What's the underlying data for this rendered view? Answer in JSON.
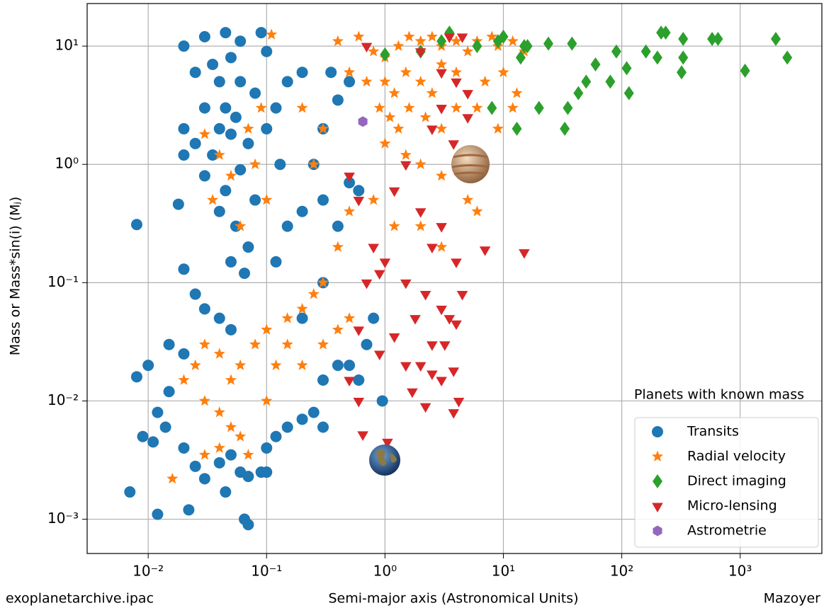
{
  "chart_data": {
    "type": "scatter",
    "xlabel": "Semi-major axis (Astronomical Units)",
    "ylabel": "Mass or Mass*sin(i) (Mⱼ)",
    "annotations": [
      "Planets with known mass",
      "exoplanetarchive.ipac",
      "Mazoyer"
    ],
    "xscale": "log",
    "yscale": "log",
    "grid": true,
    "legend_loc": "lower right",
    "xlim": [
      0.00305,
      4900
    ],
    "ylim": [
      0.000513,
      22.9
    ],
    "xticks": [
      {
        "value": 0.01,
        "label": "10⁻²"
      },
      {
        "value": 0.1,
        "label": "10⁻¹"
      },
      {
        "value": 1,
        "label": "10⁰"
      },
      {
        "value": 10,
        "label": "10¹"
      },
      {
        "value": 100,
        "label": "10²"
      },
      {
        "value": 1000,
        "label": "10³"
      }
    ],
    "yticks": [
      {
        "value": 0.001,
        "label": "10⁻³"
      },
      {
        "value": 0.01,
        "label": "10⁻²"
      },
      {
        "value": 0.1,
        "label": "10⁻¹"
      },
      {
        "value": 1,
        "label": "10⁰"
      },
      {
        "value": 10,
        "label": "10¹"
      }
    ],
    "series": [
      {
        "name": "Transits",
        "color": "#1f77b4",
        "marker": "circle",
        "x": [
          0.02,
          0.03,
          0.045,
          0.06,
          0.09,
          0.1,
          0.05,
          0.035,
          0.025,
          0.04,
          0.06,
          0.08,
          0.03,
          0.045,
          0.055,
          0.02,
          0.025,
          0.035,
          0.04,
          0.05,
          0.07,
          0.1,
          0.13,
          0.02,
          0.03,
          0.045,
          0.06,
          0.08,
          0.04,
          0.055,
          0.07,
          0.05,
          0.065,
          0.02,
          0.008,
          0.018,
          0.025,
          0.03,
          0.04,
          0.05,
          0.015,
          0.02,
          0.01,
          0.008,
          0.015,
          0.012,
          0.009,
          0.011,
          0.014,
          0.02,
          0.025,
          0.03,
          0.04,
          0.05,
          0.06,
          0.07,
          0.09,
          0.1,
          0.007,
          0.012,
          0.022,
          0.045,
          0.065,
          0.07,
          0.1,
          0.12,
          0.15,
          0.2,
          0.3,
          0.25,
          0.3,
          0.4,
          0.5,
          0.6,
          0.7,
          0.95,
          0.8,
          0.3,
          0.2,
          0.12,
          0.15,
          0.2,
          0.3,
          0.4,
          0.5,
          0.6,
          0.25,
          0.3,
          0.4,
          0.5,
          0.35,
          0.2,
          0.15,
          0.12
        ],
        "values": [
          10,
          12,
          13,
          11,
          13,
          9,
          8,
          7,
          6,
          5,
          5,
          4,
          3,
          3,
          2.5,
          2,
          1.5,
          1.2,
          2,
          1.8,
          1.5,
          2,
          1,
          1.2,
          0.8,
          0.6,
          0.9,
          0.5,
          0.4,
          0.3,
          0.2,
          0.15,
          0.12,
          0.13,
          0.31,
          0.46,
          0.08,
          0.06,
          0.05,
          0.04,
          0.03,
          0.025,
          0.02,
          0.016,
          0.012,
          0.008,
          0.005,
          0.0045,
          0.006,
          0.004,
          0.0028,
          0.0022,
          0.003,
          0.0035,
          0.0025,
          0.0023,
          0.0025,
          0.0025,
          0.0017,
          0.0011,
          0.0012,
          0.0017,
          0.001,
          0.0009,
          0.004,
          0.005,
          0.006,
          0.007,
          0.006,
          0.008,
          0.015,
          0.02,
          0.02,
          0.015,
          0.03,
          0.01,
          0.05,
          0.1,
          0.05,
          0.15,
          0.3,
          0.4,
          0.5,
          0.3,
          0.7,
          0.6,
          1,
          2,
          3.5,
          5,
          6,
          6,
          5,
          3
        ]
      },
      {
        "name": "Radial velocity",
        "color": "#ff7f0e",
        "marker": "star",
        "x": [
          0.11,
          0.4,
          0.6,
          0.8,
          1,
          1.3,
          1.6,
          2,
          2.5,
          3,
          4,
          5,
          6,
          8,
          9,
          12,
          15,
          0.5,
          0.7,
          1,
          1.2,
          1.5,
          2,
          2.5,
          3,
          4,
          7,
          10,
          13,
          0.9,
          1.1,
          1.3,
          1.6,
          2.2,
          3,
          4,
          6,
          9,
          12,
          0.3,
          0.25,
          0.2,
          1,
          1.5,
          2,
          3,
          5,
          6,
          0.8,
          0.5,
          0.4,
          1.2,
          2,
          3,
          0.3,
          0.25,
          0.2,
          0.15,
          0.1,
          0.08,
          0.06,
          0.05,
          0.04,
          0.03,
          0.025,
          0.02,
          0.03,
          0.04,
          0.05,
          0.06,
          0.04,
          0.03,
          0.016,
          0.07,
          0.1,
          0.12,
          0.15,
          0.2,
          0.3,
          0.4,
          0.5,
          0.03,
          0.04,
          0.05,
          0.035,
          0.06,
          0.1,
          0.08,
          0.07,
          0.09
        ],
        "values": [
          12.5,
          11,
          12,
          9,
          8,
          10,
          12,
          11,
          12,
          10,
          11,
          9,
          11,
          12,
          10,
          11,
          9,
          6,
          5,
          5,
          4,
          6,
          5,
          4,
          7,
          6,
          5,
          6,
          4,
          3,
          2.5,
          2,
          3,
          2.5,
          2,
          3,
          3,
          2,
          3,
          2,
          1,
          3,
          1.5,
          1.2,
          1,
          0.8,
          0.5,
          0.4,
          0.5,
          0.4,
          0.2,
          0.3,
          0.3,
          0.2,
          0.1,
          0.08,
          0.06,
          0.05,
          0.04,
          0.03,
          0.02,
          0.015,
          0.025,
          0.03,
          0.02,
          0.015,
          0.01,
          0.008,
          0.006,
          0.005,
          0.004,
          0.0035,
          0.0022,
          0.0035,
          0.01,
          0.02,
          0.03,
          0.02,
          0.03,
          0.04,
          0.05,
          1.8,
          1.2,
          0.8,
          0.5,
          0.3,
          0.5,
          1,
          2,
          3
        ]
      },
      {
        "name": "Direct imaging",
        "color": "#2ca02c",
        "marker": "diamond",
        "x": [
          1,
          3.5,
          10,
          16,
          24,
          38,
          60,
          90,
          160,
          200,
          215,
          235,
          330,
          330,
          320,
          580,
          650,
          1100,
          2000,
          2500,
          110,
          115,
          80,
          50,
          43,
          35,
          33,
          20,
          13,
          8,
          14,
          15,
          2,
          3,
          6,
          9
        ],
        "values": [
          8.5,
          13,
          12,
          10,
          10.5,
          10.5,
          7,
          9,
          9,
          8,
          13,
          13,
          11.5,
          8,
          6,
          11.5,
          11.5,
          6.2,
          11.5,
          8,
          6.5,
          4,
          5,
          5,
          4,
          3,
          2,
          3,
          2,
          3,
          8,
          10,
          9,
          11,
          10,
          11
        ]
      },
      {
        "name": "Micro-lensing",
        "color": "#d62728",
        "marker": "triangle-down",
        "x": [
          0.7,
          3.5,
          4.5,
          2,
          3,
          4,
          5,
          3,
          2.5,
          3.8,
          5,
          1.5,
          0.5,
          0.6,
          1.2,
          2,
          3,
          0.8,
          1,
          2.5,
          4,
          0.7,
          0.9,
          1.5,
          2.2,
          3,
          3.5,
          4,
          1.8,
          2.5,
          3.2,
          1.2,
          0.6,
          0.9,
          1.5,
          2,
          2.5,
          3,
          3.8,
          0.5,
          0.6,
          1.7,
          2.2,
          3.8,
          4.2,
          0.65,
          1.05,
          7,
          15,
          4.5
        ],
        "values": [
          10,
          12,
          12,
          9,
          6,
          5,
          4,
          3,
          2,
          1.5,
          2.5,
          1,
          0.8,
          0.5,
          0.6,
          0.4,
          0.3,
          0.2,
          0.15,
          0.2,
          0.15,
          0.1,
          0.12,
          0.1,
          0.08,
          0.06,
          0.05,
          0.045,
          0.05,
          0.03,
          0.03,
          0.035,
          0.04,
          0.025,
          0.02,
          0.02,
          0.017,
          0.015,
          0.018,
          0.015,
          0.01,
          0.012,
          0.009,
          0.008,
          0.01,
          0.0052,
          0.0045,
          0.19,
          0.18,
          0.08
        ]
      },
      {
        "name": "Astrometrie",
        "color": "#9467bd",
        "marker": "hexagon",
        "x": [
          0.65
        ],
        "values": [
          2.3
        ]
      }
    ]
  }
}
